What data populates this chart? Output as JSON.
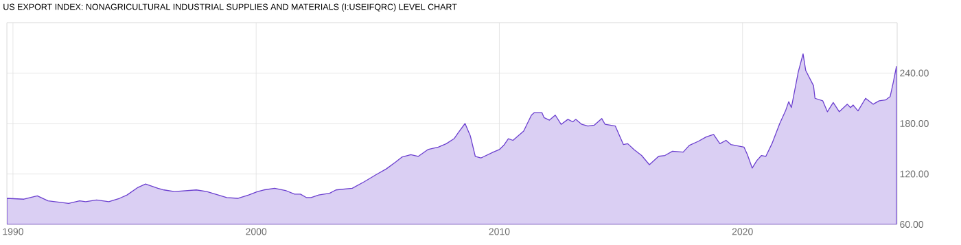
{
  "chart_data": {
    "type": "area",
    "title": "US EXPORT INDEX: NONAGRICULTURAL INDUSTRIAL SUPPLIES AND MATERIALS (I:USEIFQRC) LEVEL CHART",
    "color": "#dacff3",
    "grid": true,
    "x": [
      1989.75,
      1990.45,
      1991.0,
      1991.44,
      1992.29,
      1992.74,
      1992.99,
      1993.44,
      1993.94,
      1994.38,
      1994.69,
      1995.14,
      1995.45,
      1995.96,
      1996.21,
      1996.64,
      1997.54,
      1997.97,
      1998.79,
      1999.24,
      1999.69,
      2000.06,
      2000.31,
      2000.76,
      2001.24,
      2001.58,
      2001.82,
      2002.06,
      2002.26,
      2002.57,
      2003.02,
      2003.28,
      2003.95,
      2004.46,
      2004.92,
      2005.35,
      2005.73,
      2005.99,
      2006.36,
      2006.67,
      2007.06,
      2007.49,
      2007.82,
      2008.14,
      2008.31,
      2008.59,
      2008.81,
      2009.01,
      2009.24,
      2009.75,
      2010.0,
      2010.18,
      2010.37,
      2010.56,
      2011.0,
      2011.32,
      2011.44,
      2011.75,
      2011.84,
      2012.06,
      2012.3,
      2012.54,
      2012.82,
      2013.02,
      2013.14,
      2013.39,
      2013.64,
      2013.9,
      2014.21,
      2014.35,
      2014.77,
      2015.1,
      2015.28,
      2015.54,
      2015.85,
      2016.17,
      2016.55,
      2016.81,
      2017.12,
      2017.56,
      2017.81,
      2018.19,
      2018.5,
      2018.81,
      2019.07,
      2019.32,
      2019.52,
      2020.06,
      2020.2,
      2020.4,
      2020.59,
      2020.78,
      2020.96,
      2021.21,
      2021.53,
      2021.78,
      2021.9,
      2022.01,
      2022.29,
      2022.49,
      2022.6,
      2022.92,
      2022.98,
      2023.3,
      2023.49,
      2023.73,
      2023.98,
      2024.31,
      2024.44,
      2024.55,
      2024.75,
      2025.06,
      2025.37,
      2025.62,
      2025.88,
      2026.07,
      2026.2,
      2026.33
    ],
    "values": [
      91,
      90,
      94,
      88,
      85,
      88,
      87,
      89,
      87,
      91,
      95,
      104,
      108,
      103,
      101,
      99,
      101,
      99,
      92,
      91,
      95,
      99,
      101,
      103,
      100,
      96,
      96,
      92,
      92,
      95,
      97,
      101,
      103,
      111,
      119,
      126,
      134,
      140,
      143,
      141,
      149,
      152,
      156,
      162,
      169,
      180,
      165,
      141,
      139,
      146,
      149,
      154,
      162,
      160,
      171,
      190,
      193,
      193,
      187,
      184,
      190,
      179,
      185,
      182,
      185,
      179,
      177,
      178,
      186,
      179,
      177,
      155,
      156,
      149,
      142,
      131,
      141,
      142,
      147,
      146,
      154,
      159,
      164,
      167,
      156,
      160,
      155,
      152,
      143,
      127,
      136,
      142,
      141,
      156,
      180,
      196,
      206,
      199,
      241,
      263,
      243,
      225,
      210,
      207,
      194,
      205,
      194,
      203,
      199,
      202,
      195,
      210,
      203,
      207,
      208,
      212,
      229,
      248
    ],
    "xlim": [
      1989.75,
      2026.36
    ],
    "ylim": [
      60,
      300
    ],
    "xticks": [
      1990,
      2000,
      2010,
      2020
    ],
    "yticks": [
      {
        "value": 60,
        "label": "60.00"
      },
      {
        "value": 120,
        "label": "120.00"
      },
      {
        "value": 180,
        "label": "180.00"
      },
      {
        "value": 240,
        "label": "240.00"
      }
    ]
  }
}
